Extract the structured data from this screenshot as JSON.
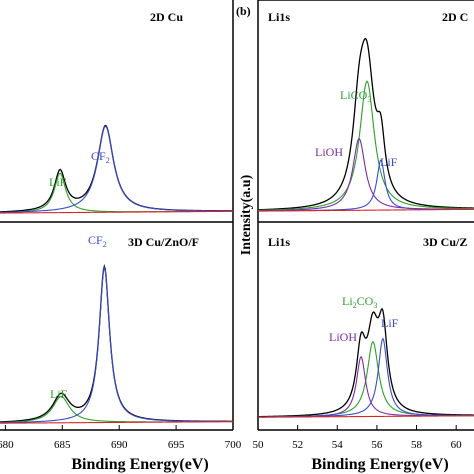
{
  "chart_data": [
    {
      "type": "line",
      "panel": "F1s 2D Cu",
      "title": "2D Cu",
      "xlabel": "Binding Energy(eV)",
      "ylabel": "",
      "xlim": [
        679,
        700
      ],
      "ylim": [
        0,
        1.15
      ],
      "xticks": [
        "680",
        "685",
        "690",
        "695",
        "700"
      ],
      "series": [
        {
          "name": "",
          "color": "#000000",
          "role": "envelope"
        },
        {
          "name": "LiF",
          "color": "#2ca02c",
          "center": 684.8,
          "height": 0.22,
          "width": 0.6
        },
        {
          "name": "CF2",
          "color": "#3a4bd0",
          "center": 688.8,
          "height": 0.48,
          "width": 0.85
        },
        {
          "name": "",
          "color": "#d62728",
          "role": "background"
        }
      ],
      "annotations": [
        {
          "text": "LiF",
          "color": "#2ca02c"
        },
        {
          "text": "CF",
          "sub": "2",
          "color": "#3a4bd0"
        }
      ]
    },
    {
      "type": "line",
      "panel": "F1s 3D Cu/ZnO/F",
      "title": "3D Cu/ZnO/F",
      "xlim": [
        679,
        700
      ],
      "ylim": [
        0,
        1.15
      ],
      "series": [
        {
          "name": "",
          "color": "#000000",
          "role": "envelope"
        },
        {
          "name": "LiF",
          "color": "#2ca02c",
          "center": 684.9,
          "height": 0.17,
          "width": 0.9
        },
        {
          "name": "CF2",
          "color": "#3a4bd0",
          "center": 688.7,
          "height": 1.0,
          "width": 0.55
        },
        {
          "name": "",
          "color": "#d62728",
          "role": "background"
        }
      ],
      "annotations": [
        {
          "text": "LiF",
          "color": "#2ca02c"
        },
        {
          "text": "CF",
          "sub": "2",
          "color": "#3a4bd0"
        }
      ]
    },
    {
      "type": "line",
      "panel": "Li1s 2D Cu",
      "title": "2D C",
      "element": "Li1s",
      "xlabel": "Binding Energy(eV)",
      "ylabel": "Intensity(a.u)",
      "xlim": [
        50,
        61
      ],
      "ylim": [
        0,
        1.15
      ],
      "xticks": [
        "50",
        "52",
        "54",
        "56",
        "58",
        "60"
      ],
      "series": [
        {
          "name": "",
          "color": "#000000",
          "role": "envelope"
        },
        {
          "name": "LiCO3",
          "color": "#2ca02c",
          "center": 55.5,
          "height": 0.72,
          "width": 0.45
        },
        {
          "name": "LiOH",
          "color": "#7a2ca8",
          "center": 55.1,
          "height": 0.4,
          "width": 0.38
        },
        {
          "name": "LiF",
          "color": "#3a4bd0",
          "center": 56.2,
          "height": 0.28,
          "width": 0.25
        },
        {
          "name": "",
          "color": "#d62728",
          "role": "background"
        }
      ],
      "annotations": [
        {
          "text": "LiCO",
          "sub": "3",
          "color": "#2ca02c"
        },
        {
          "text": "LiOH",
          "color": "#7a2ca8"
        },
        {
          "text": "LiF",
          "color": "#3a4bd0"
        }
      ]
    },
    {
      "type": "line",
      "panel": "Li1s 3D Cu/ZnO/F",
      "title": "3D Cu/Z",
      "element": "Li1s",
      "xlim": [
        50,
        61
      ],
      "ylim": [
        0,
        1.15
      ],
      "series": [
        {
          "name": "",
          "color": "#000000",
          "role": "envelope"
        },
        {
          "name": "Li2CO3",
          "color": "#2ca02c",
          "center": 55.8,
          "height": 0.5,
          "width": 0.35
        },
        {
          "name": "LiOH",
          "color": "#7a2ca8",
          "center": 55.2,
          "height": 0.4,
          "width": 0.28
        },
        {
          "name": "LiF",
          "color": "#3a4bd0",
          "center": 56.3,
          "height": 0.52,
          "width": 0.28
        },
        {
          "name": "",
          "color": "#d62728",
          "role": "background"
        }
      ],
      "annotations": [
        {
          "text": "Li",
          "sub": "2",
          "tail": "CO",
          "sub2": "3",
          "color": "#2ca02c"
        },
        {
          "text": "LiOH",
          "color": "#7a2ca8"
        },
        {
          "text": "LiF",
          "color": "#3a4bd0"
        }
      ]
    }
  ],
  "panel_letter": "(b)"
}
